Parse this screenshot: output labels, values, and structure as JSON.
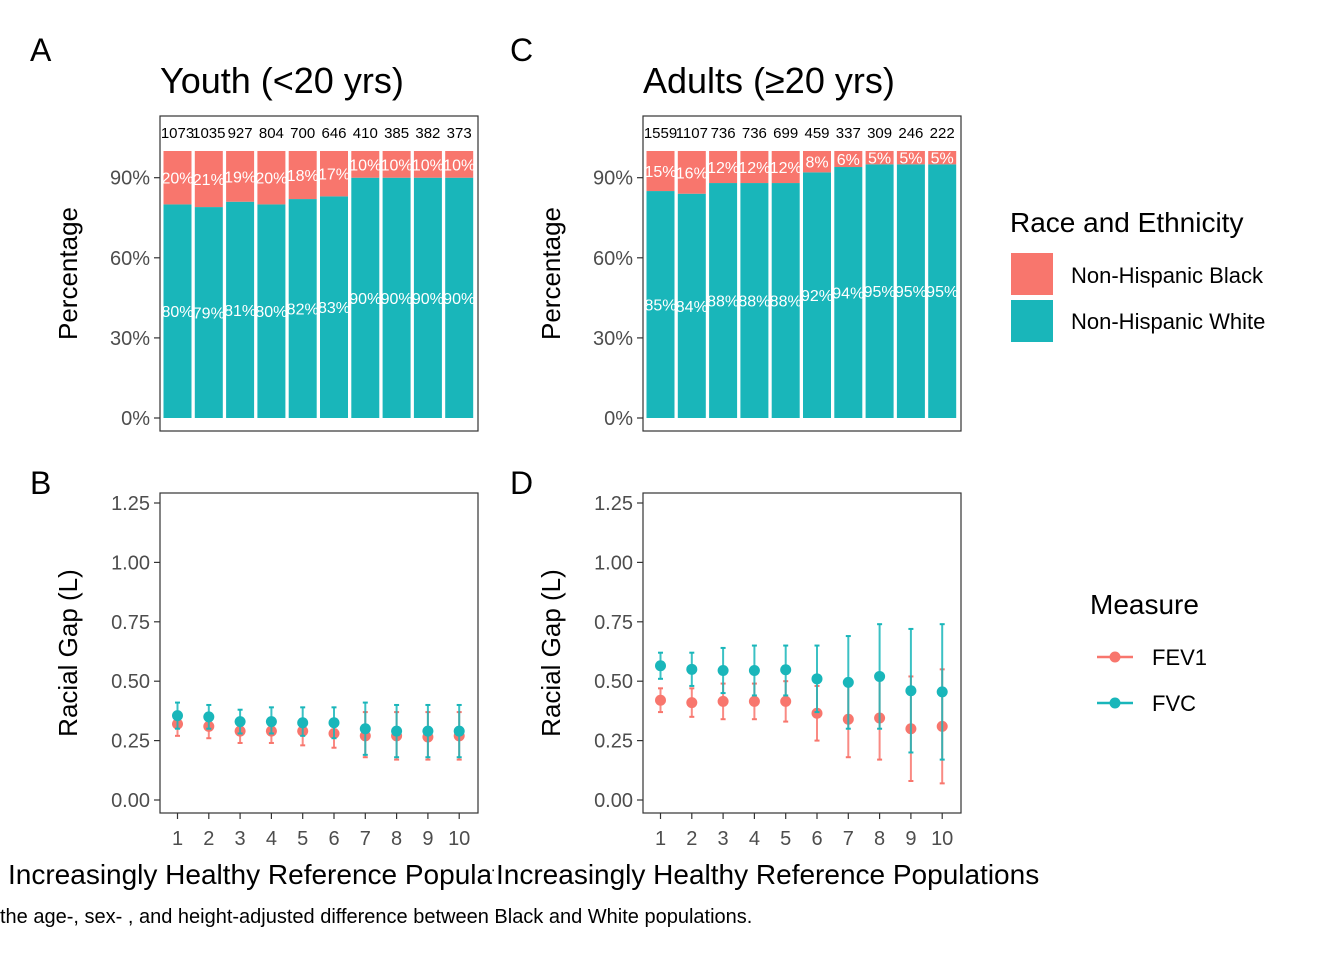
{
  "panel_letters": {
    "a": "A",
    "b": "B",
    "c": "C",
    "d": "D"
  },
  "caption": "the age-, sex- , and height-adjusted difference between Black and White populations.",
  "colors": {
    "black": "#F8766D",
    "white": "#19B6BA",
    "fvc": "#19B6BA",
    "fev1": "#F8766D"
  },
  "legend_race": {
    "title": "Race and Ethnicity",
    "items": [
      "Non-Hispanic Black",
      "Non-Hispanic White"
    ]
  },
  "legend_measure": {
    "title": "Measure",
    "items": [
      "FEV1",
      "FVC"
    ]
  },
  "chart_data": [
    {
      "panel": "A",
      "type": "bar",
      "stacked": true,
      "title": "Youth (<20 yrs)",
      "xlabel": "",
      "ylabel": "Percentage",
      "yticks": [
        "0%",
        "30%",
        "60%",
        "90%"
      ],
      "ylim": [
        0,
        100
      ],
      "categories": [
        "1",
        "2",
        "3",
        "4",
        "5",
        "6",
        "7",
        "8",
        "9",
        "10"
      ],
      "counts": [
        "1073",
        "1035",
        "927",
        "804",
        "700",
        "646",
        "410",
        "385",
        "382",
        "373"
      ],
      "series": [
        {
          "name": "Non-Hispanic White",
          "values": [
            80,
            79,
            81,
            80,
            82,
            83,
            90,
            90,
            90,
            90
          ],
          "labels": [
            "80%",
            "79%",
            "81%",
            "80%",
            "82%",
            "83%",
            "90%",
            "90%",
            "90%",
            "90%"
          ]
        },
        {
          "name": "Non-Hispanic Black",
          "values": [
            20,
            21,
            19,
            20,
            18,
            17,
            10,
            10,
            10,
            10
          ],
          "labels": [
            "20%",
            "21%",
            "19%",
            "20%",
            "18%",
            "17%",
            "10%",
            "10%",
            "10%",
            "10%"
          ]
        }
      ]
    },
    {
      "panel": "C",
      "type": "bar",
      "stacked": true,
      "title": "Adults (≥20 yrs)",
      "xlabel": "",
      "ylabel": "Percentage",
      "yticks": [
        "0%",
        "30%",
        "60%",
        "90%"
      ],
      "ylim": [
        0,
        100
      ],
      "categories": [
        "1",
        "2",
        "3",
        "4",
        "5",
        "6",
        "7",
        "8",
        "9",
        "10"
      ],
      "counts": [
        "1559",
        "1107",
        "736",
        "736",
        "699",
        "459",
        "337",
        "309",
        "246",
        "222"
      ],
      "series": [
        {
          "name": "Non-Hispanic White",
          "values": [
            85,
            84,
            88,
            88,
            88,
            92,
            94,
            95,
            95,
            95
          ],
          "labels": [
            "85%",
            "84%",
            "88%",
            "88%",
            "88%",
            "92%",
            "94%",
            "95%",
            "95%",
            "95%"
          ]
        },
        {
          "name": "Non-Hispanic Black",
          "values": [
            15,
            16,
            12,
            12,
            12,
            8,
            6,
            5,
            5,
            5
          ],
          "labels": [
            "15%",
            "16%",
            "12%",
            "12%",
            "12%",
            "8%",
            "6%",
            "5%",
            "5%",
            "5%"
          ]
        }
      ]
    },
    {
      "panel": "B",
      "type": "scatter",
      "error_bars": true,
      "xlabel": "Increasingly Healthy Reference Populations",
      "ylabel": "Racial Gap (L)",
      "yticks": [
        "0.00",
        "0.25",
        "0.50",
        "0.75",
        "1.00",
        "1.25"
      ],
      "ylim": [
        0,
        1.25
      ],
      "x": [
        "1",
        "2",
        "3",
        "4",
        "5",
        "6",
        "7",
        "8",
        "9",
        "10"
      ],
      "series": [
        {
          "name": "FEV1",
          "values": [
            0.32,
            0.31,
            0.29,
            0.29,
            0.29,
            0.28,
            0.27,
            0.27,
            0.265,
            0.27
          ],
          "lower": [
            0.27,
            0.26,
            0.24,
            0.24,
            0.23,
            0.22,
            0.18,
            0.17,
            0.17,
            0.17
          ],
          "upper": [
            0.37,
            0.36,
            0.34,
            0.34,
            0.34,
            0.34,
            0.37,
            0.37,
            0.37,
            0.37
          ]
        },
        {
          "name": "FVC",
          "values": [
            0.355,
            0.35,
            0.33,
            0.33,
            0.325,
            0.325,
            0.3,
            0.29,
            0.29,
            0.29
          ],
          "lower": [
            0.3,
            0.3,
            0.28,
            0.28,
            0.27,
            0.26,
            0.19,
            0.18,
            0.18,
            0.18
          ],
          "upper": [
            0.41,
            0.4,
            0.38,
            0.39,
            0.39,
            0.39,
            0.41,
            0.4,
            0.4,
            0.4
          ]
        }
      ]
    },
    {
      "panel": "D",
      "type": "scatter",
      "error_bars": true,
      "xlabel": "Increasingly Healthy Reference Populations",
      "ylabel": "Racial Gap (L)",
      "yticks": [
        "0.00",
        "0.25",
        "0.50",
        "0.75",
        "1.00",
        "1.25"
      ],
      "ylim": [
        0,
        1.25
      ],
      "x": [
        "1",
        "2",
        "3",
        "4",
        "5",
        "6",
        "7",
        "8",
        "9",
        "10"
      ],
      "series": [
        {
          "name": "FEV1",
          "values": [
            0.42,
            0.41,
            0.415,
            0.415,
            0.415,
            0.365,
            0.34,
            0.345,
            0.3,
            0.31
          ],
          "lower": [
            0.37,
            0.35,
            0.34,
            0.34,
            0.33,
            0.25,
            0.18,
            0.17,
            0.08,
            0.07
          ],
          "upper": [
            0.47,
            0.47,
            0.49,
            0.49,
            0.5,
            0.48,
            0.5,
            0.52,
            0.52,
            0.55
          ]
        },
        {
          "name": "FVC",
          "values": [
            0.565,
            0.55,
            0.545,
            0.545,
            0.548,
            0.51,
            0.495,
            0.52,
            0.46,
            0.455
          ],
          "lower": [
            0.51,
            0.48,
            0.45,
            0.44,
            0.44,
            0.37,
            0.3,
            0.3,
            0.2,
            0.17
          ],
          "upper": [
            0.62,
            0.62,
            0.64,
            0.65,
            0.65,
            0.65,
            0.69,
            0.74,
            0.72,
            0.74
          ]
        }
      ]
    }
  ]
}
